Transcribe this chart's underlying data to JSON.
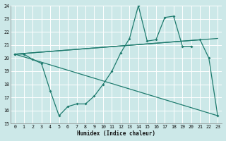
{
  "xlabel": "Humidex (Indice chaleur)",
  "bg_color": "#cce8e8",
  "grid_color": "#b0d8d8",
  "line_color": "#1e7b6e",
  "xlim": [
    -0.5,
    23.5
  ],
  "ylim": [
    15,
    24
  ],
  "yticks": [
    15,
    16,
    17,
    18,
    19,
    20,
    21,
    22,
    23,
    24
  ],
  "xticks": [
    0,
    1,
    2,
    3,
    4,
    5,
    6,
    7,
    8,
    9,
    10,
    11,
    12,
    13,
    14,
    15,
    16,
    17,
    18,
    19,
    20,
    21,
    22,
    23
  ],
  "series1_x": [
    0,
    1,
    2,
    3,
    4,
    5,
    6,
    7,
    8,
    9,
    10,
    11,
    12,
    13,
    14,
    15,
    16,
    17,
    18,
    19,
    20
  ],
  "series1_y": [
    20.3,
    20.3,
    19.9,
    19.6,
    17.5,
    15.6,
    16.3,
    16.5,
    16.5,
    17.1,
    18.0,
    19.0,
    20.4,
    21.5,
    24.0,
    21.3,
    21.4,
    23.1,
    23.2,
    20.9,
    20.9
  ],
  "series2_x": [
    0,
    21,
    22,
    23
  ],
  "series2_y": [
    20.3,
    21.4,
    20.0,
    15.6
  ],
  "trend1_x": [
    0,
    23
  ],
  "trend1_y": [
    20.3,
    21.5
  ],
  "trend2_x": [
    0,
    23
  ],
  "trend2_y": [
    20.3,
    15.6
  ]
}
